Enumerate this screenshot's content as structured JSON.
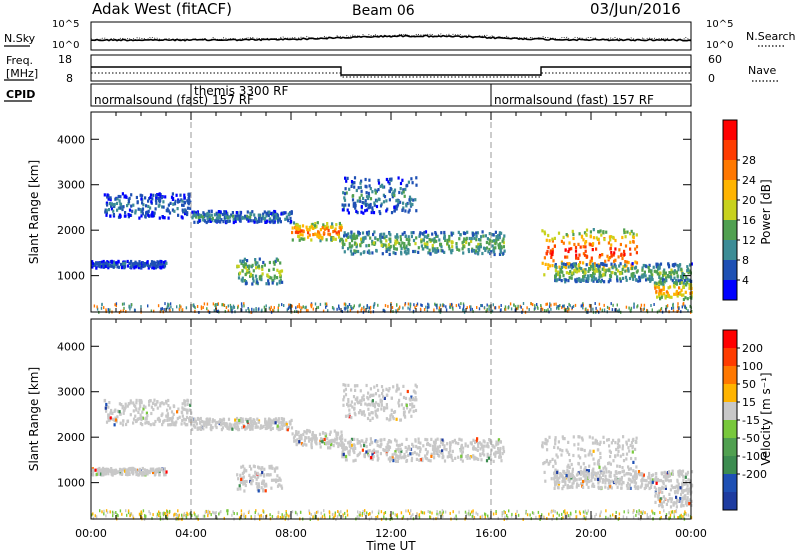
{
  "header": {
    "station": "Adak West (fitACF)",
    "beam": "Beam 06",
    "date": "03/Jun/2016"
  },
  "left_labels": {
    "nsky": "N.Sky",
    "freq_line1": "Freq.",
    "freq_line2": "[MHz]",
    "cpid": "CPID"
  },
  "right_labels": {
    "nsearch": "N.Search",
    "nave": "Nave"
  },
  "noise_panel": {
    "left_ticks": [
      "10^5",
      "10^0"
    ],
    "right_ticks": [
      "10^5",
      "10^0"
    ]
  },
  "freq_panel": {
    "left_ticks": [
      "18",
      "8"
    ],
    "right_ticks": [
      "60",
      "0"
    ]
  },
  "cpid_panel": {
    "segments": [
      {
        "label": "normalsound (fast) 157 RF",
        "start_hour": 0,
        "end_hour": 4
      },
      {
        "label": "themis 3300 RF",
        "start_hour": 4,
        "end_hour": 16
      },
      {
        "label": "normalsound (fast) 157 RF",
        "start_hour": 16,
        "end_hour": 24
      }
    ]
  },
  "chart_data": [
    {
      "type": "heatmap",
      "name": "power",
      "ylabel": "Slant Range [km]",
      "xlabel": "",
      "xlim": [
        0,
        24
      ],
      "ylim": [
        200,
        4600
      ],
      "y_ticks": [
        "1000",
        "2000",
        "3000",
        "4000"
      ],
      "colorbar": {
        "label": "Power [dB]",
        "ticks": [
          "4",
          "8",
          "12",
          "16",
          "20",
          "24",
          "28"
        ],
        "colors": [
          "#0000ff",
          "#1e50b4",
          "#3c8c96",
          "#50a050",
          "#c8d21e",
          "#ffb400",
          "#ff7800",
          "#ff3c00",
          "#ff0000"
        ]
      },
      "bands": [
        {
          "hours": [
            0.5,
            4.0
          ],
          "range_km": [
            2300,
            2850
          ],
          "level": 8
        },
        {
          "hours": [
            4.0,
            8.0
          ],
          "range_km": [
            2200,
            2450
          ],
          "level": 10
        },
        {
          "hours": [
            8.0,
            10.0
          ],
          "range_km": [
            1800,
            2200
          ],
          "level": 24
        },
        {
          "hours": [
            10.0,
            16.5
          ],
          "range_km": [
            1500,
            2000
          ],
          "level": 14
        },
        {
          "hours": [
            0.0,
            3.0
          ],
          "range_km": [
            1200,
            1350
          ],
          "level": 8
        },
        {
          "hours": [
            5.8,
            7.6
          ],
          "range_km": [
            850,
            1400
          ],
          "level": 16
        },
        {
          "hours": [
            18.0,
            21.8
          ],
          "range_km": [
            1050,
            2050
          ],
          "level": 26
        },
        {
          "hours": [
            18.5,
            24.0
          ],
          "range_km": [
            900,
            1300
          ],
          "level": 14
        },
        {
          "hours": [
            22.5,
            24.0
          ],
          "range_km": [
            500,
            900
          ],
          "level": 22
        },
        {
          "hours": [
            10.0,
            13.0
          ],
          "range_km": [
            2400,
            3200
          ],
          "level": 10
        }
      ]
    },
    {
      "type": "heatmap",
      "name": "velocity",
      "ylabel": "Slant Range [km]",
      "xlabel": "Time UT",
      "xlim": [
        0,
        24
      ],
      "ylim": [
        200,
        4600
      ],
      "x_ticks": [
        "00:00",
        "04:00",
        "08:00",
        "12:00",
        "16:00",
        "20:00",
        "00:00"
      ],
      "y_ticks": [
        "1000",
        "2000",
        "3000",
        "4000"
      ],
      "colorbar": {
        "label": "Velocity [m s⁻¹]",
        "ticks": [
          "200",
          "100",
          "50",
          "15",
          "-15",
          "-50",
          "-100",
          "-200"
        ],
        "colors": [
          "#1e3ca0",
          "#1e50b4",
          "#3c8c50",
          "#50a050",
          "#78c83c",
          "#c8c8c8",
          "#ffb400",
          "#ff7800",
          "#ff3c00",
          "#ff0000"
        ]
      },
      "bands": [
        {
          "hours": [
            0.5,
            4.0
          ],
          "range_km": [
            2300,
            2850
          ],
          "level": 0
        },
        {
          "hours": [
            4.0,
            8.0
          ],
          "range_km": [
            2200,
            2450
          ],
          "level": 0
        },
        {
          "hours": [
            8.0,
            10.0
          ],
          "range_km": [
            1800,
            2200
          ],
          "level": 0
        },
        {
          "hours": [
            10.0,
            16.5
          ],
          "range_km": [
            1500,
            2000
          ],
          "level": 0
        },
        {
          "hours": [
            0.0,
            3.0
          ],
          "range_km": [
            1200,
            1350
          ],
          "level": 0
        },
        {
          "hours": [
            5.8,
            7.6
          ],
          "range_km": [
            850,
            1400
          ],
          "level": 0
        },
        {
          "hours": [
            18.0,
            21.8
          ],
          "range_km": [
            1050,
            2050
          ],
          "level": 0
        },
        {
          "hours": [
            18.5,
            24.0
          ],
          "range_km": [
            900,
            1300
          ],
          "level": 0
        },
        {
          "hours": [
            22.5,
            24.0
          ],
          "range_km": [
            500,
            900
          ],
          "level": 0
        },
        {
          "hours": [
            10.0,
            13.0
          ],
          "range_km": [
            2400,
            3200
          ],
          "level": 0
        }
      ]
    }
  ]
}
